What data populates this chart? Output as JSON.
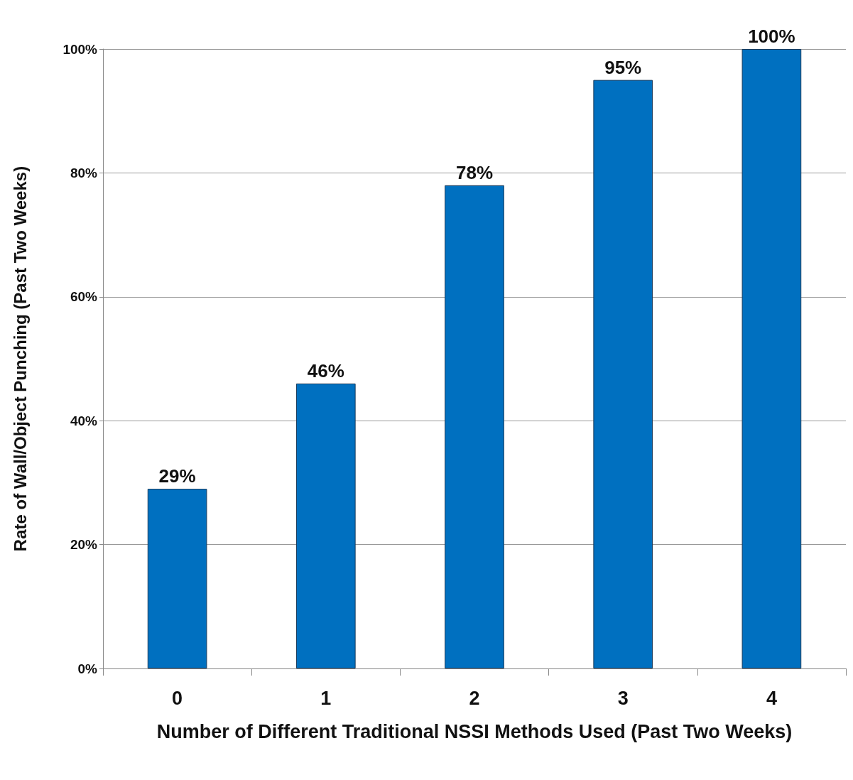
{
  "chart_data": {
    "type": "bar",
    "xlabel": "Number of Different Traditional NSSI Methods Used (Past Two Weeks)",
    "ylabel": "Rate of Wall/Object Punching (Past Two Weeks)",
    "categories": [
      "0",
      "1",
      "2",
      "3",
      "4"
    ],
    "values": [
      29,
      46,
      78,
      95,
      100
    ],
    "value_labels": [
      "29%",
      "46%",
      "78%",
      "95%",
      "100%"
    ],
    "color": "#0070c0",
    "ylim": [
      0,
      100
    ],
    "yticks": [
      {
        "value": 0,
        "label": "0%"
      },
      {
        "value": 20,
        "label": "20%"
      },
      {
        "value": 40,
        "label": "40%"
      },
      {
        "value": 60,
        "label": "60%"
      },
      {
        "value": 80,
        "label": "80%"
      },
      {
        "value": 100,
        "label": "100%"
      }
    ],
    "grid": "y"
  }
}
